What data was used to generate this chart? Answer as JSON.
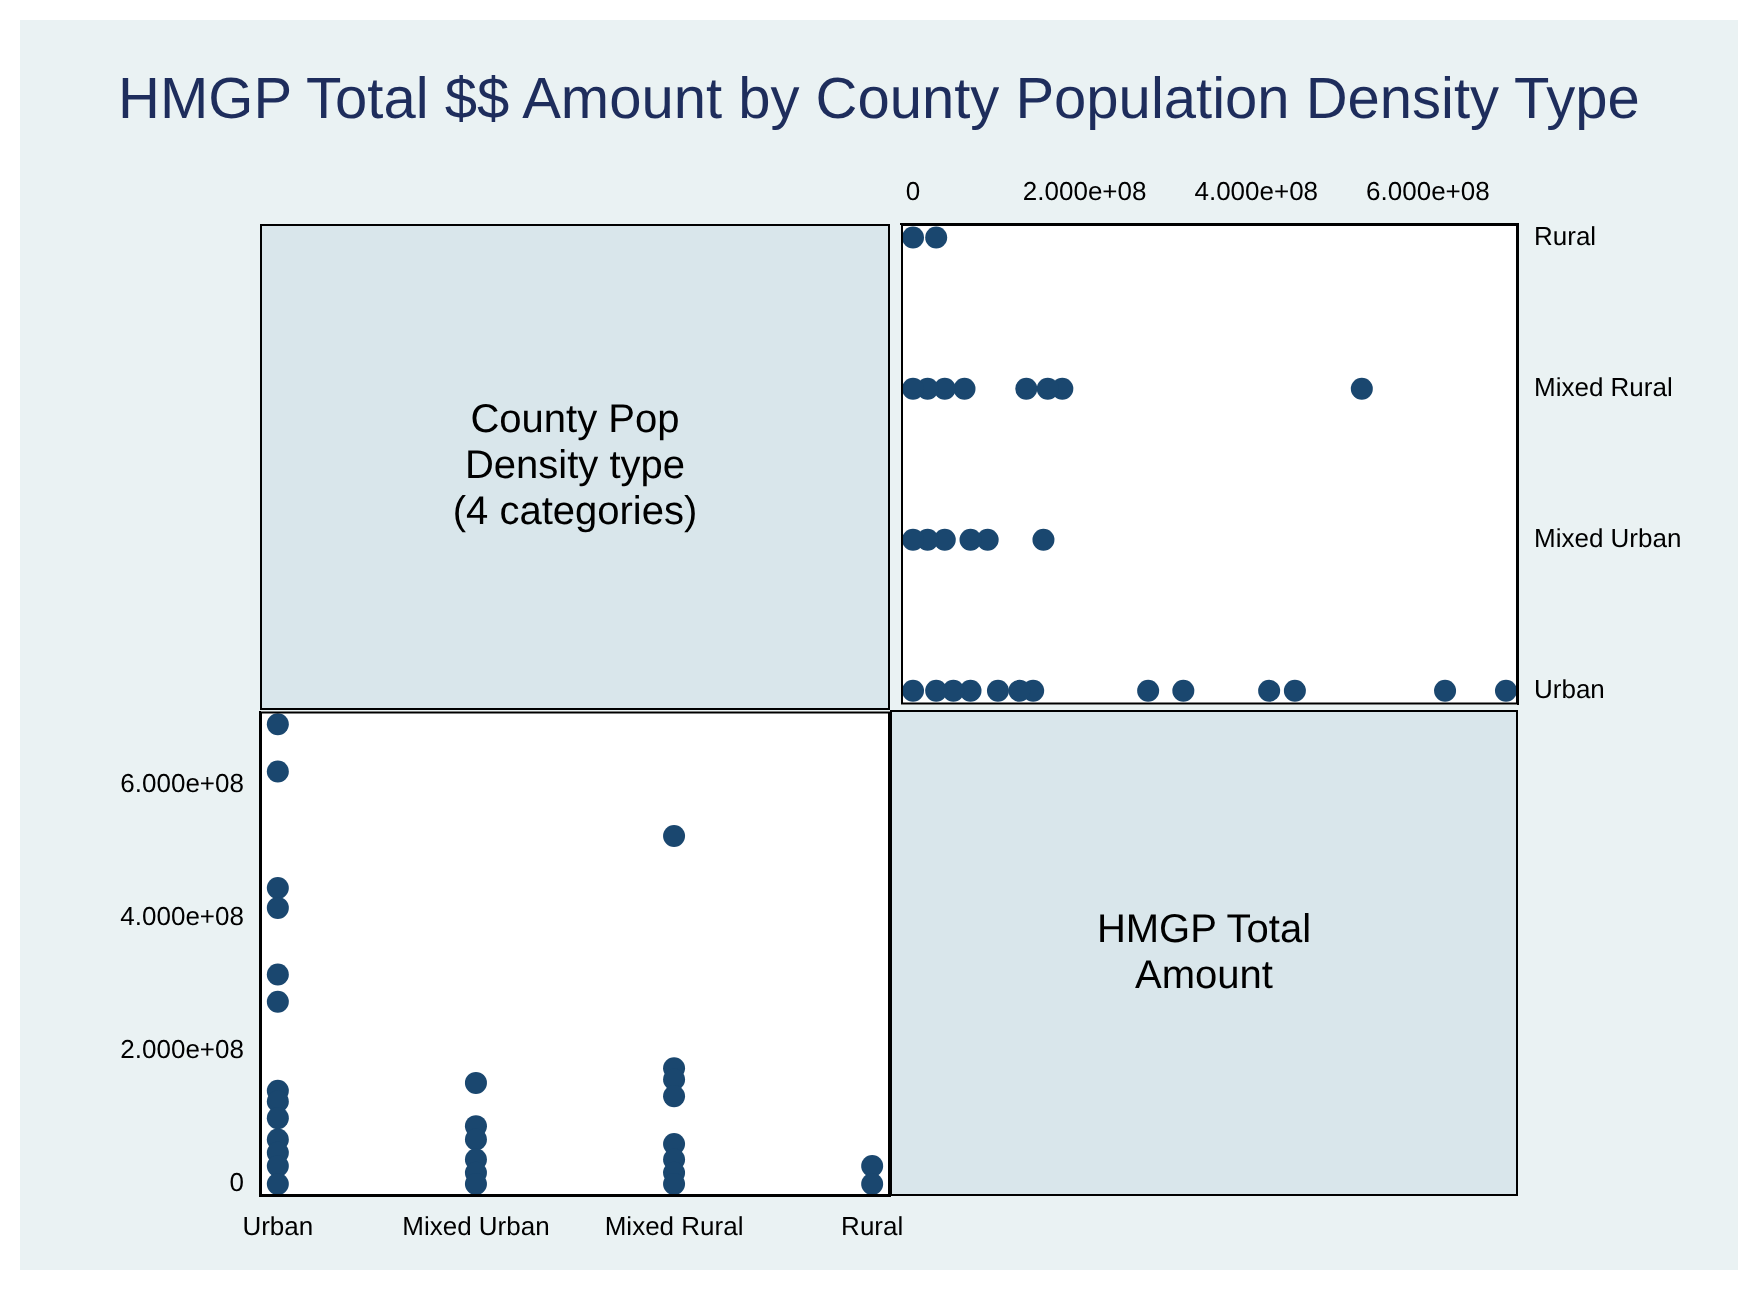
{
  "chart_data": [
    {
      "type": "other",
      "title": "HMGP Total $$ Amount by County Population Density Type",
      "annotations": [
        "County Pop Density type (4 categories)"
      ]
    },
    {
      "type": "scatter",
      "orientation": "horizontal",
      "categories": [
        "Rural",
        "Mixed Rural",
        "Mixed Urban",
        "Urban"
      ],
      "marker": "circle",
      "grid": false,
      "xlim": [
        -14000000,
        705000000
      ],
      "xticks": [
        0,
        {
          "value": 200000000,
          "label": "2.000e+08"
        },
        {
          "value": 400000000,
          "label": "4.000e+08"
        },
        {
          "value": 600000000,
          "label": "6.000e+08"
        }
      ],
      "series": [
        {
          "color": "#1a476f",
          "x": [
            "Urban",
            "Urban",
            "Urban",
            "Urban",
            "Urban",
            "Urban",
            "Urban",
            "Urban",
            "Urban",
            "Urban",
            "Urban",
            "Urban",
            "Urban",
            "Urban",
            "Mixed Urban",
            "Mixed Urban",
            "Mixed Urban",
            "Mixed Urban",
            "Mixed Urban",
            "Mixed Urban",
            "Mixed Rural",
            "Mixed Rural",
            "Mixed Rural",
            "Mixed Rural",
            "Mixed Rural",
            "Mixed Rural",
            "Mixed Rural",
            "Mixed Rural",
            "Rural",
            "Rural",
            "Rural"
          ],
          "values": [
            691000000,
            620000000,
            445000000,
            415000000,
            315000000,
            274000000,
            140000000,
            124000000,
            99000000,
            67000000,
            47000000,
            27000000,
            null,
            0,
            152000000,
            87000000,
            67000000,
            37000000,
            17000000,
            0,
            523000000,
            174000000,
            157000000,
            132000000,
            60000000,
            37000000,
            17000000,
            0,
            27000000,
            null,
            0
          ]
        }
      ]
    },
    {
      "type": "scatter",
      "categories": [
        "Urban",
        "Mixed Urban",
        "Mixed Rural",
        "Rural"
      ],
      "marker": "circle",
      "grid": false,
      "ylim": [
        -18000000,
        710000000
      ],
      "yticks": [
        0,
        {
          "value": 200000000,
          "label": "2.000e+08"
        },
        {
          "value": 400000000,
          "label": "4.000e+08"
        },
        {
          "value": 600000000,
          "label": "6.000e+08"
        }
      ],
      "series": [
        {
          "color": "#1a476f",
          "x": [
            "Urban",
            "Urban",
            "Urban",
            "Urban",
            "Urban",
            "Urban",
            "Urban",
            "Urban",
            "Urban",
            "Urban",
            "Urban",
            "Urban",
            "Urban",
            "Urban",
            "Mixed Urban",
            "Mixed Urban",
            "Mixed Urban",
            "Mixed Urban",
            "Mixed Urban",
            "Mixed Urban",
            "Mixed Rural",
            "Mixed Rural",
            "Mixed Rural",
            "Mixed Rural",
            "Mixed Rural",
            "Mixed Rural",
            "Mixed Rural",
            "Mixed Rural",
            "Rural",
            "Rural",
            "Rural"
          ],
          "values": [
            691000000,
            620000000,
            445000000,
            415000000,
            315000000,
            274000000,
            140000000,
            124000000,
            99000000,
            67000000,
            47000000,
            27000000,
            null,
            0,
            152000000,
            87000000,
            67000000,
            37000000,
            17000000,
            0,
            523000000,
            174000000,
            157000000,
            132000000,
            60000000,
            37000000,
            17000000,
            0,
            27000000,
            null,
            0
          ]
        }
      ]
    },
    {
      "type": "other",
      "annotations": [
        "HMGP Total Amount"
      ]
    }
  ]
}
